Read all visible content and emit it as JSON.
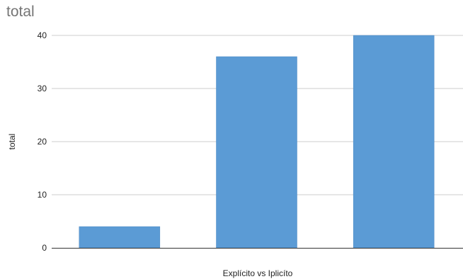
{
  "chart_data": {
    "type": "bar",
    "title": "total",
    "xlabel": "Explícito vs Iplicíto",
    "ylabel": "total",
    "categories": [
      "",
      "",
      ""
    ],
    "series": [
      {
        "values": [
          4,
          36,
          40
        ]
      }
    ],
    "ylim": [
      0,
      40
    ],
    "yticks": [
      0,
      10,
      20,
      30,
      40
    ],
    "grid": true,
    "legend": "none",
    "bar_color": "#5b9bd5",
    "grid_color": "#cccccc",
    "axis_color": "#333333"
  }
}
